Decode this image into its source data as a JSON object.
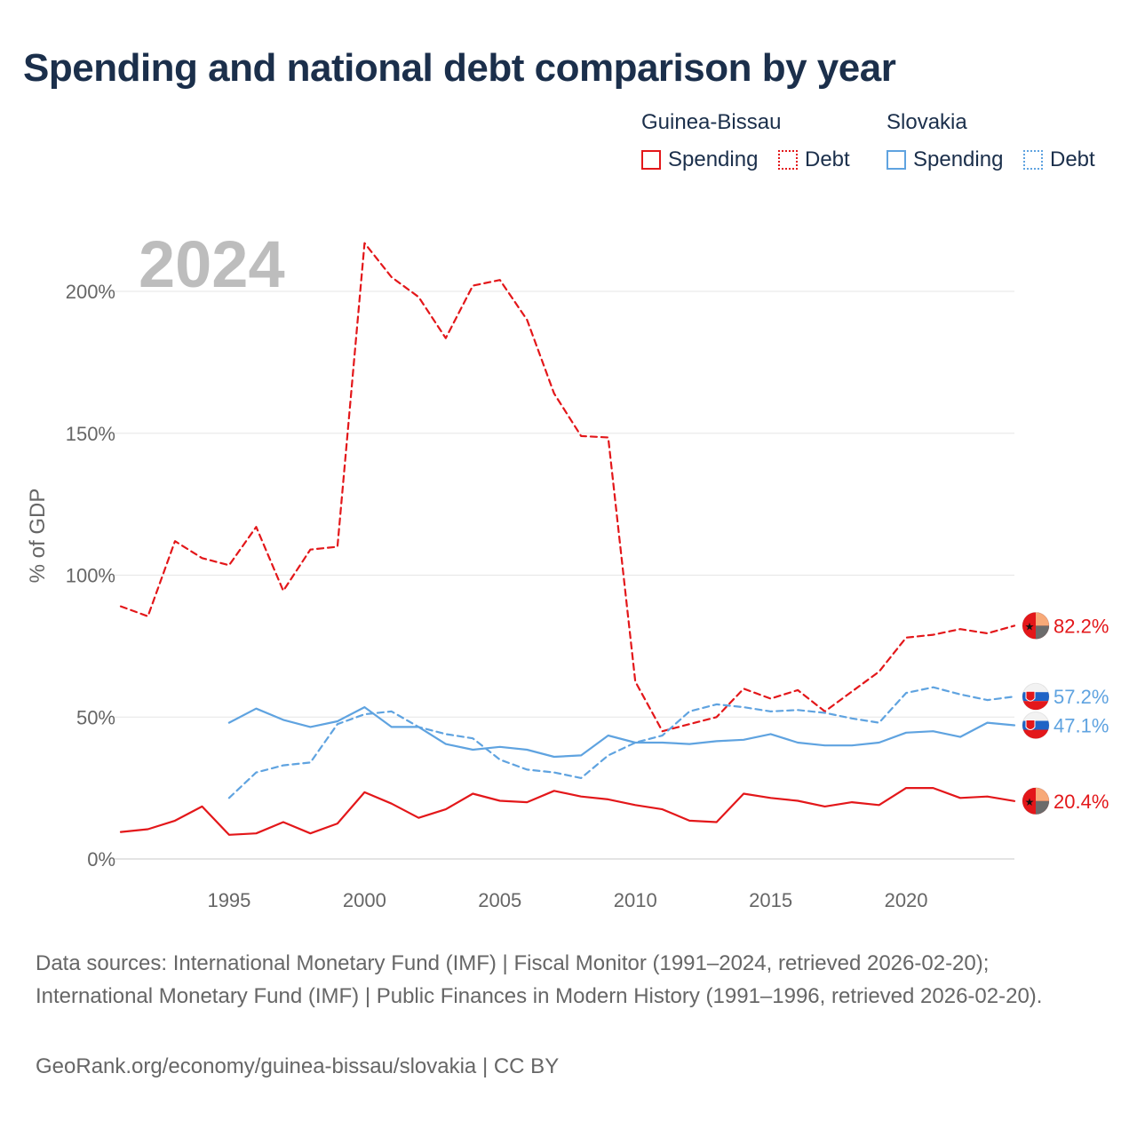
{
  "title": "Spending and national debt comparison by year",
  "legend": {
    "countries": [
      {
        "name": "Guinea-Bissau",
        "spending_label": "Spending",
        "debt_label": "Debt",
        "color": "#e3171a"
      },
      {
        "name": "Slovakia",
        "spending_label": "Spending",
        "debt_label": "Debt",
        "color": "#5fa3e0"
      }
    ]
  },
  "chart_data": {
    "type": "line",
    "year_watermark": "2024",
    "ylabel": "% of GDP",
    "ylim": [
      0,
      200
    ],
    "xlim": [
      1991,
      2024
    ],
    "x_ticks": [
      "1995",
      "2000",
      "2005",
      "2010",
      "2015",
      "2020"
    ],
    "y_ticks": [
      "0%",
      "50%",
      "100%",
      "150%",
      "200%"
    ],
    "series": [
      {
        "name": "Guinea-Bissau Debt",
        "country": "Guinea-Bissau",
        "kind": "debt",
        "color": "#e3171a",
        "dashed": true,
        "x": [
          1991,
          1992,
          1993,
          1994,
          1995,
          1996,
          1997,
          1998,
          1999,
          2000,
          2001,
          2002,
          2003,
          2004,
          2005,
          2006,
          2007,
          2008,
          2009,
          2010,
          2011,
          2012,
          2013,
          2014,
          2015,
          2016,
          2017,
          2018,
          2019,
          2020,
          2021,
          2022,
          2023,
          2024
        ],
        "values": [
          89,
          85.5,
          112,
          106,
          103.5,
          117,
          94.5,
          109,
          110,
          217,
          205,
          198,
          183.5,
          202,
          204,
          190,
          164,
          149,
          148.5,
          62.5,
          45,
          47.5,
          50,
          60,
          56.5,
          59.5,
          52,
          59,
          66,
          78,
          79,
          81,
          79.5,
          82.2
        ]
      },
      {
        "name": "Slovakia Debt",
        "country": "Slovakia",
        "kind": "debt",
        "color": "#5fa3e0",
        "dashed": true,
        "x": [
          1995,
          1996,
          1997,
          1998,
          1999,
          2000,
          2001,
          2002,
          2003,
          2004,
          2005,
          2006,
          2007,
          2008,
          2009,
          2010,
          2011,
          2012,
          2013,
          2014,
          2015,
          2016,
          2017,
          2018,
          2019,
          2020,
          2021,
          2022,
          2023,
          2024
        ],
        "values": [
          21.5,
          30.5,
          33,
          34,
          47.5,
          51,
          52,
          46.5,
          44,
          42.5,
          35,
          31.5,
          30.5,
          28.5,
          36.5,
          41,
          43.5,
          52,
          54.5,
          53.5,
          52,
          52.5,
          51.5,
          49.5,
          48,
          58.5,
          60.5,
          58,
          56,
          57.2
        ]
      },
      {
        "name": "Slovakia Spending",
        "country": "Slovakia",
        "kind": "spending",
        "color": "#5fa3e0",
        "dashed": false,
        "x": [
          1995,
          1996,
          1997,
          1998,
          1999,
          2000,
          2001,
          2002,
          2003,
          2004,
          2005,
          2006,
          2007,
          2008,
          2009,
          2010,
          2011,
          2012,
          2013,
          2014,
          2015,
          2016,
          2017,
          2018,
          2019,
          2020,
          2021,
          2022,
          2023,
          2024
        ],
        "values": [
          48,
          53,
          49,
          46.5,
          48.5,
          53.5,
          46.5,
          46.5,
          40.5,
          38.5,
          39.5,
          38.5,
          36,
          36.5,
          43.5,
          41,
          41,
          40.5,
          41.5,
          42,
          44,
          41,
          40,
          40,
          41,
          44.5,
          45,
          43,
          48,
          47.1
        ]
      },
      {
        "name": "Guinea-Bissau Spending",
        "country": "Guinea-Bissau",
        "kind": "spending",
        "color": "#e3171a",
        "dashed": false,
        "x": [
          1991,
          1992,
          1993,
          1994,
          1995,
          1996,
          1997,
          1998,
          1999,
          2000,
          2001,
          2002,
          2003,
          2004,
          2005,
          2006,
          2007,
          2008,
          2009,
          2010,
          2011,
          2012,
          2013,
          2014,
          2015,
          2016,
          2017,
          2018,
          2019,
          2020,
          2021,
          2022,
          2023,
          2024
        ],
        "values": [
          9.5,
          10.5,
          13.5,
          18.5,
          8.5,
          9,
          13,
          9,
          12.5,
          23.5,
          19.5,
          14.5,
          17.5,
          23,
          20.5,
          20,
          24,
          22,
          21,
          19,
          17.5,
          13.5,
          13,
          23,
          21.5,
          20.5,
          18.5,
          20,
          19,
          25,
          25,
          21.5,
          22,
          20.4
        ]
      }
    ],
    "end_labels": [
      {
        "series": "Guinea-Bissau Debt",
        "text": "82.2%",
        "color": "#e3171a",
        "flag": "guinea-bissau"
      },
      {
        "series": "Slovakia Debt",
        "text": "57.2%",
        "color": "#5fa3e0",
        "flag": "slovakia"
      },
      {
        "series": "Slovakia Spending",
        "text": "47.1%",
        "color": "#5fa3e0",
        "flag": "slovakia"
      },
      {
        "series": "Guinea-Bissau Spending",
        "text": "20.4%",
        "color": "#e3171a",
        "flag": "guinea-bissau"
      }
    ]
  },
  "footer": {
    "sources": "Data sources: International Monetary Fund (IMF) | Fiscal Monitor (1991–2024, retrieved 2026-02-20); International Monetary Fund (IMF) | Public Finances in Modern History (1991–1996, retrieved 2026-02-20).",
    "credit": "GeoRank.org/economy/guinea-bissau/slovakia | CC BY"
  }
}
